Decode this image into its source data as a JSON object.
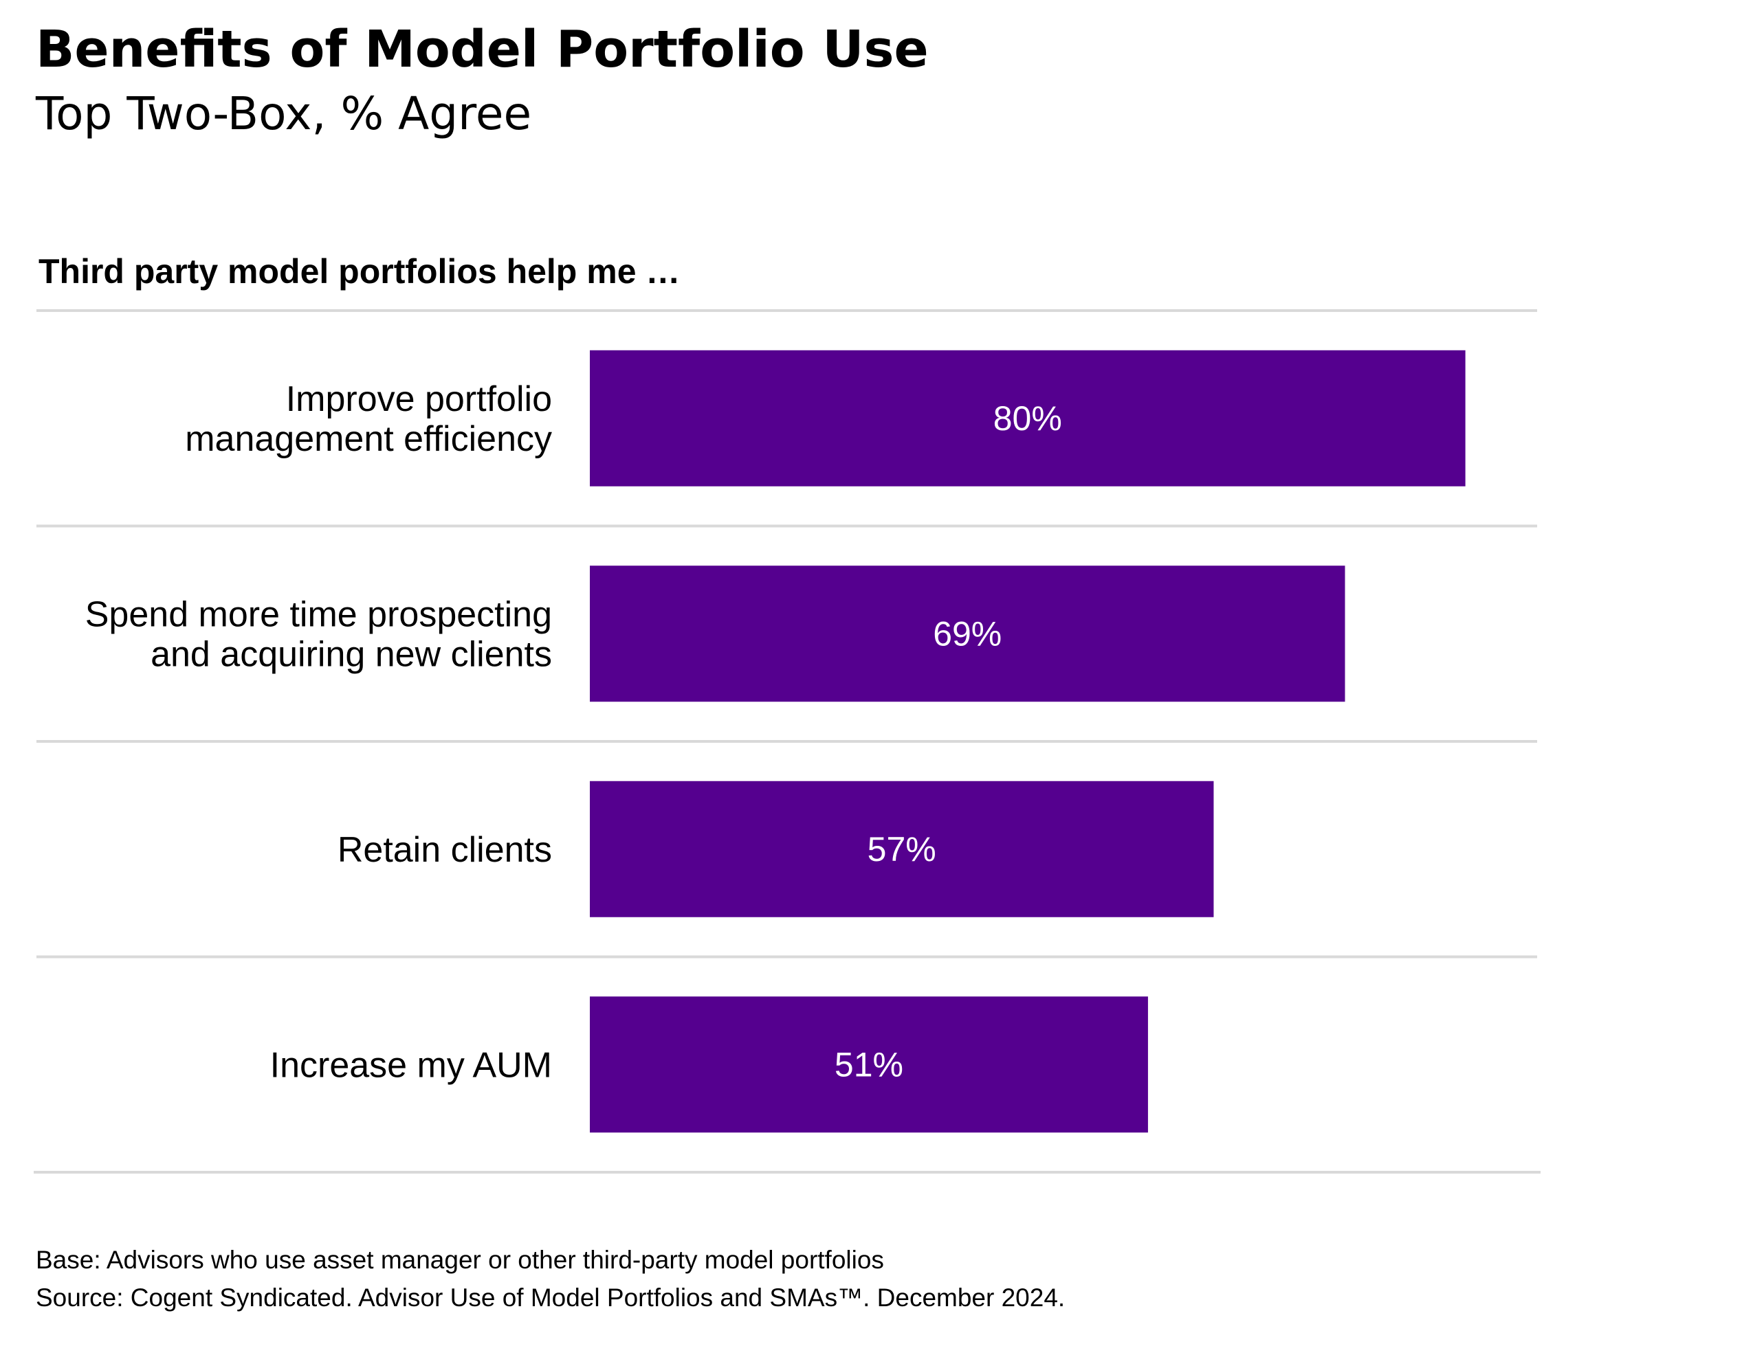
{
  "header": {
    "title": "Benefits of Model Portfolio Use",
    "subtitle": "Top Two-Box, % Agree"
  },
  "chart_data": {
    "type": "bar",
    "orientation": "horizontal",
    "question": "Third party model portfolios help me …",
    "categories": [
      [
        "Improve portfolio",
        "management efficiency"
      ],
      [
        "Spend more time prospecting",
        "and acquiring new clients"
      ],
      [
        "Retain clients"
      ],
      [
        "Increase my AUM"
      ]
    ],
    "values": [
      80,
      69,
      57,
      51
    ],
    "value_labels": [
      "80%",
      "69%",
      "57%",
      "51%"
    ],
    "xlim": [
      0,
      100
    ],
    "grid": false,
    "bar_color": "#55008F",
    "separator_color": "#D9D9D9"
  },
  "footnotes": {
    "base": "Base: Advisors who use asset manager or other third-party model portfolios",
    "source": "Source: Cogent Syndicated. Advisor Use of Model Portfolios and SMAs™. December 2024."
  }
}
